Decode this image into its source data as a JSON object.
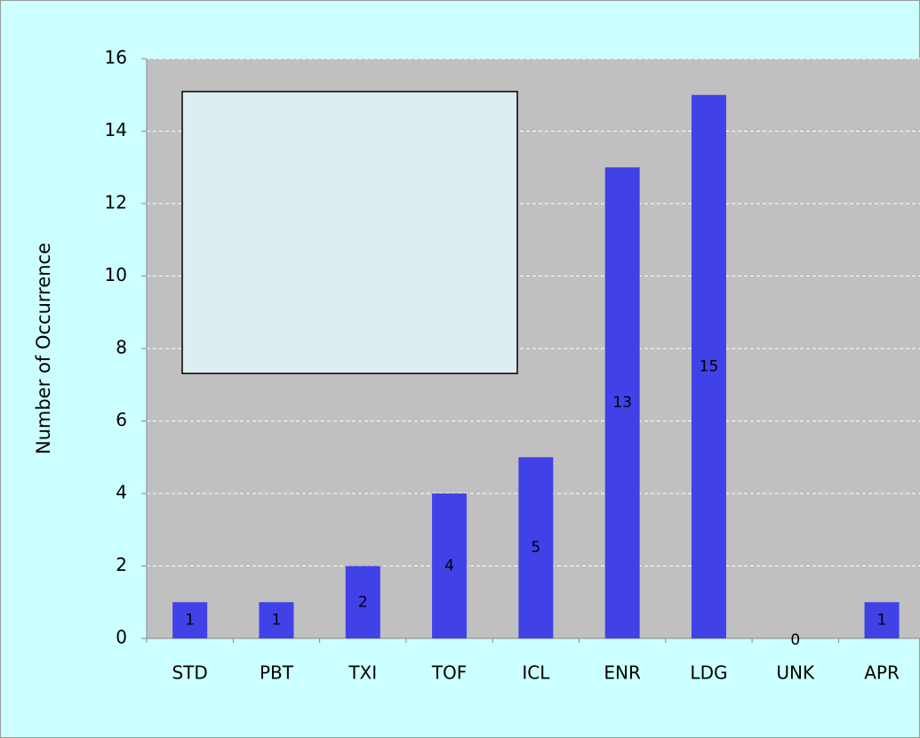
{
  "chart_data": {
    "type": "bar",
    "y_label": "Number of Occurrence",
    "categories": [
      "STD",
      "PBT",
      "TXI",
      "TOF",
      "ICL",
      "ENR",
      "LDG",
      "UNK",
      "APR"
    ],
    "values": [
      1,
      1,
      2,
      4,
      5,
      13,
      15,
      0,
      1
    ],
    "color": "#4141e8",
    "ylim": [
      0,
      16
    ],
    "yticks": [
      0,
      2,
      4,
      6,
      8,
      10,
      12,
      14,
      16
    ],
    "grid": true
  }
}
